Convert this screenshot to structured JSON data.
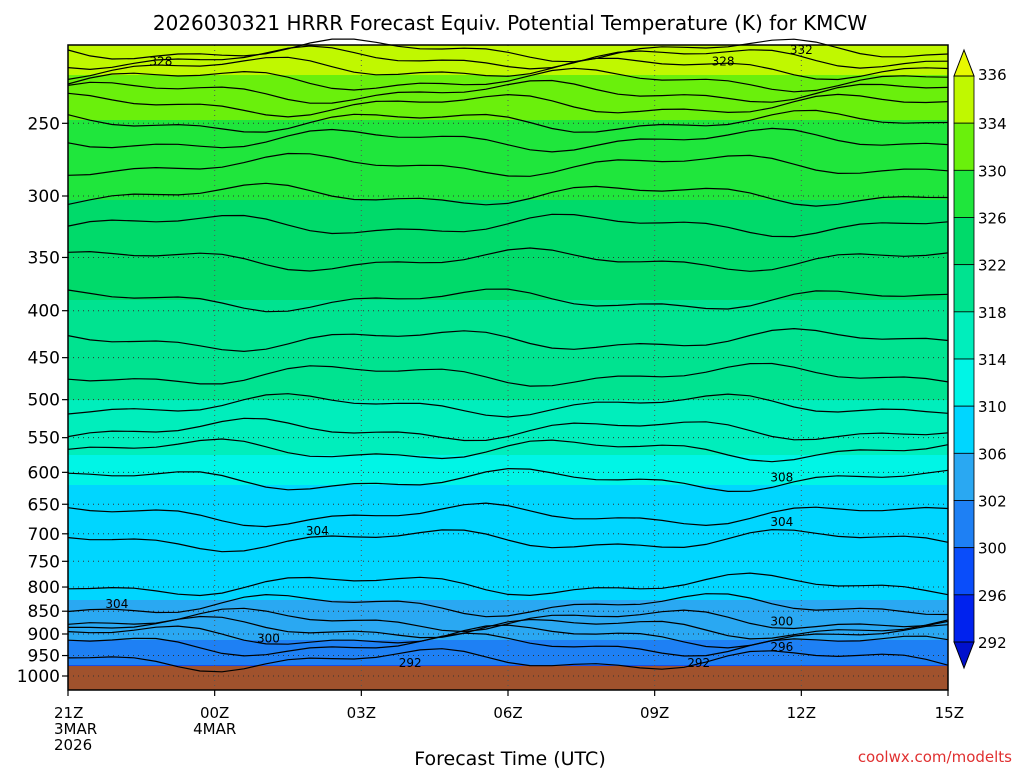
{
  "chart_data": {
    "type": "heatmap",
    "title": "2026030321 HRRR Forecast Equiv. Potential Temperature (K) for KMCW",
    "xlabel": "Forecast Time (UTC)",
    "ylabel": "",
    "credit": "coolwx.com/modelts",
    "x_hours": [
      0,
      18
    ],
    "x_ticks": [
      {
        "hour": 0,
        "lines": [
          "21Z",
          "3MAR",
          "2026"
        ]
      },
      {
        "hour": 3,
        "lines": [
          "00Z",
          "4MAR"
        ]
      },
      {
        "hour": 6,
        "lines": [
          "03Z"
        ]
      },
      {
        "hour": 9,
        "lines": [
          "06Z"
        ]
      },
      {
        "hour": 12,
        "lines": [
          "09Z"
        ]
      },
      {
        "hour": 15,
        "lines": [
          "12Z"
        ]
      },
      {
        "hour": 18,
        "lines": [
          "15Z"
        ]
      }
    ],
    "y_ticks": [
      250,
      300,
      350,
      400,
      450,
      500,
      550,
      600,
      650,
      700,
      750,
      800,
      850,
      900,
      950,
      1000
    ],
    "ylim": [
      200,
      1000
    ],
    "colorbar": {
      "levels": [
        292,
        296,
        300,
        302,
        306,
        310,
        314,
        318,
        322,
        326,
        330,
        334,
        336
      ],
      "colors": [
        "#0022ee",
        "#0a4dfa",
        "#1e80f4",
        "#2aa8f2",
        "#00d6ff",
        "#00f5e6",
        "#00eebc",
        "#00e390",
        "#00da6a",
        "#1fe63c",
        "#6af00c",
        "#c0f800"
      ]
    },
    "ground_color": "#a0522d",
    "ground_top_hpa": 975,
    "contour_labels": [
      {
        "text": "328",
        "hour": 1.9,
        "hpa": 214
      },
      {
        "text": "328",
        "hour": 13.4,
        "hpa": 214
      },
      {
        "text": "332",
        "hour": 15.0,
        "hpa": 208
      },
      {
        "text": "308",
        "hour": 14.6,
        "hpa": 608
      },
      {
        "text": "304",
        "hour": 5.1,
        "hpa": 695
      },
      {
        "text": "304",
        "hour": 14.6,
        "hpa": 680
      },
      {
        "text": "304",
        "hour": 1.0,
        "hpa": 835
      },
      {
        "text": "300",
        "hour": 14.6,
        "hpa": 872
      },
      {
        "text": "300",
        "hour": 4.1,
        "hpa": 910
      },
      {
        "text": "296",
        "hour": 14.6,
        "hpa": 930
      },
      {
        "text": "292",
        "hour": 7.0,
        "hpa": 968
      },
      {
        "text": "292",
        "hour": 12.9,
        "hpa": 968
      }
    ]
  }
}
